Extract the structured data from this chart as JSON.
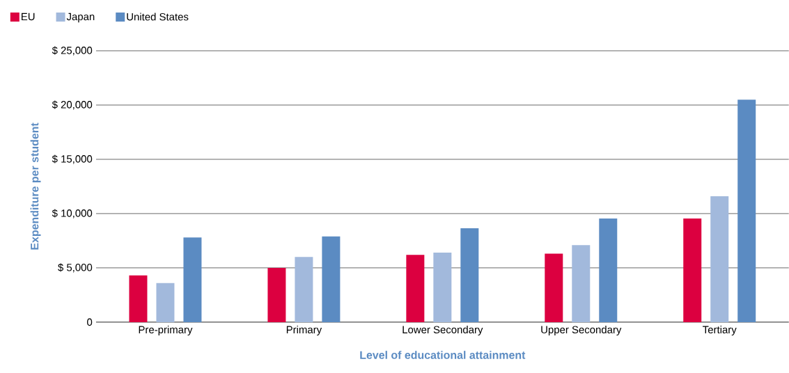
{
  "chart_data": {
    "type": "bar",
    "xlabel": "Level of educational attainment",
    "ylabel": "Expenditure per student",
    "categories": [
      "Pre-primary",
      "Primary",
      "Lower Secondary",
      "Upper Secondary",
      "Tertiary"
    ],
    "series": [
      {
        "name": "EU",
        "color": "#dc0040",
        "values": [
          4300,
          5000,
          6200,
          6300,
          9550
        ]
      },
      {
        "name": "Japan",
        "color": "#a2b9dc",
        "values": [
          3600,
          6000,
          6400,
          7100,
          11600
        ]
      },
      {
        "name": "United States",
        "color": "#5b8bc2",
        "values": [
          7800,
          7900,
          8650,
          9550,
          20500
        ]
      }
    ],
    "ylim": [
      0,
      25000
    ],
    "yticks": [
      0,
      {
        "value": 5000,
        "label": "$ 5,000"
      },
      {
        "value": 10000,
        "label": "$ 10,000"
      },
      {
        "value": 15000,
        "label": "$ 15,000"
      },
      {
        "value": 20000,
        "label": "$ 20,000"
      },
      {
        "value": 25000,
        "label": "$ 25,000"
      }
    ],
    "grid": "y",
    "legend": "top left"
  }
}
